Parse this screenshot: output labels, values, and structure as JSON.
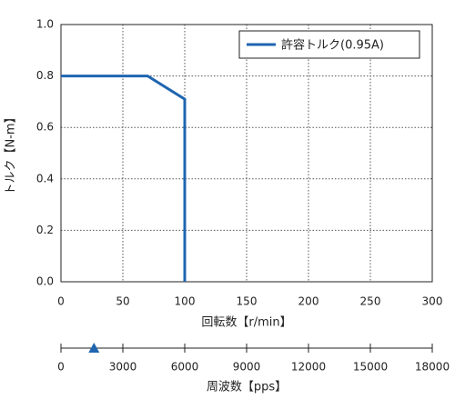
{
  "chart_data": [
    {
      "type": "line",
      "xlabel": "回転数【r/min】",
      "ylabel": "トルク【N-m】",
      "x": [
        0,
        70,
        100,
        100
      ],
      "series": [
        {
          "name": "許容トルク(0.95A)",
          "color": "#1f65b0",
          "values": [
            0.8,
            0.8,
            0.71,
            0
          ]
        }
      ],
      "xlim": [
        0,
        300
      ],
      "xticks": [
        0,
        50,
        100,
        150,
        200,
        250,
        300
      ],
      "ylim": [
        0,
        1.0
      ],
      "yticks": [
        {
          "value": 0,
          "label": "0.0"
        },
        {
          "value": 0.2,
          "label": "0.2"
        },
        {
          "value": 0.4,
          "label": "0.4"
        },
        {
          "value": 0.6,
          "label": "0.6"
        },
        {
          "value": 0.8,
          "label": "0.8"
        },
        {
          "value": 1.0,
          "label": "1.0"
        }
      ],
      "grid": true,
      "legend": "upper right"
    },
    {
      "type": "axis",
      "xlabel": "周波数【pps】",
      "xlim": [
        0,
        18000
      ],
      "xticks": [
        0,
        3000,
        6000,
        9000,
        12000,
        15000,
        18000
      ],
      "marker": 1600,
      "marker_color": "#1f65b0"
    }
  ]
}
